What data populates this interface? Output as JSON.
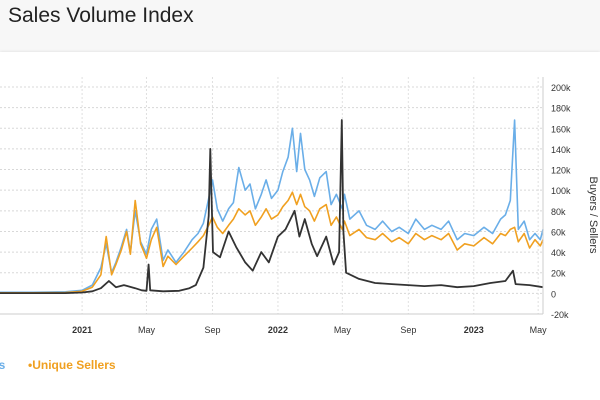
{
  "page": {
    "title": "Sales Volume Index"
  },
  "legend": {
    "items": [
      {
        "label": "Unique Buyers",
        "visible_text": "rs",
        "color": "#6aaee8"
      },
      {
        "label": "Unique Sellers",
        "visible_text": "•Unique Sellers",
        "color": "#f0a020"
      }
    ]
  },
  "chart_data": {
    "type": "line",
    "ylabel": "Buyers / Sellers",
    "ylim": [
      -20000,
      200000
    ],
    "y_ticks": [
      "200k",
      "180k",
      "160k",
      "140k",
      "120k",
      "100k",
      "80k",
      "60k",
      "40k",
      "20k",
      "0",
      "-20k"
    ],
    "y_tick_values": [
      200000,
      180000,
      160000,
      140000,
      120000,
      100000,
      80000,
      60000,
      40000,
      20000,
      0,
      -20000
    ],
    "x_range": [
      "2020-08-01",
      "2023-05-10"
    ],
    "x_ticks": [
      {
        "label": "2021",
        "date": "2021-01-01",
        "bold": true
      },
      {
        "label": "May",
        "date": "2021-05-01",
        "bold": false
      },
      {
        "label": "Sep",
        "date": "2021-09-01",
        "bold": false
      },
      {
        "label": "2022",
        "date": "2022-01-01",
        "bold": true
      },
      {
        "label": "May",
        "date": "2022-05-01",
        "bold": false
      },
      {
        "label": "Sep",
        "date": "2022-09-01",
        "bold": false
      },
      {
        "label": "2023",
        "date": "2023-01-01",
        "bold": true
      },
      {
        "label": "May",
        "date": "2023-05-01",
        "bold": false
      }
    ],
    "grid": true,
    "series": [
      {
        "name": "Unique Buyers",
        "color": "#6aaee8",
        "points": [
          [
            "2020-08-01",
            1000
          ],
          [
            "2020-10-01",
            1000
          ],
          [
            "2020-12-01",
            1500
          ],
          [
            "2021-01-01",
            3000
          ],
          [
            "2021-01-20",
            8000
          ],
          [
            "2021-02-05",
            25000
          ],
          [
            "2021-02-15",
            48000
          ],
          [
            "2021-02-25",
            20000
          ],
          [
            "2021-03-05",
            30000
          ],
          [
            "2021-03-15",
            45000
          ],
          [
            "2021-03-25",
            62000
          ],
          [
            "2021-04-01",
            40000
          ],
          [
            "2021-04-10",
            80000
          ],
          [
            "2021-04-20",
            50000
          ],
          [
            "2021-05-01",
            38000
          ],
          [
            "2021-05-10",
            62000
          ],
          [
            "2021-05-20",
            72000
          ],
          [
            "2021-06-01",
            32000
          ],
          [
            "2021-06-10",
            42000
          ],
          [
            "2021-06-25",
            30000
          ],
          [
            "2021-07-10",
            40000
          ],
          [
            "2021-07-25",
            52000
          ],
          [
            "2021-08-05",
            58000
          ],
          [
            "2021-08-15",
            68000
          ],
          [
            "2021-08-25",
            92000
          ],
          [
            "2021-09-01",
            110000
          ],
          [
            "2021-09-10",
            82000
          ],
          [
            "2021-09-20",
            70000
          ],
          [
            "2021-10-01",
            82000
          ],
          [
            "2021-10-10",
            88000
          ],
          [
            "2021-10-20",
            122000
          ],
          [
            "2021-11-01",
            100000
          ],
          [
            "2021-11-10",
            106000
          ],
          [
            "2021-11-20",
            82000
          ],
          [
            "2021-12-01",
            96000
          ],
          [
            "2021-12-10",
            110000
          ],
          [
            "2021-12-20",
            92000
          ],
          [
            "2022-01-01",
            100000
          ],
          [
            "2022-01-10",
            118000
          ],
          [
            "2022-01-20",
            132000
          ],
          [
            "2022-01-28",
            160000
          ],
          [
            "2022-02-05",
            118000
          ],
          [
            "2022-02-12",
            155000
          ],
          [
            "2022-02-20",
            120000
          ],
          [
            "2022-03-01",
            110000
          ],
          [
            "2022-03-10",
            94000
          ],
          [
            "2022-03-20",
            112000
          ],
          [
            "2022-04-01",
            118000
          ],
          [
            "2022-04-10",
            86000
          ],
          [
            "2022-04-20",
            96000
          ],
          [
            "2022-05-01",
            82000
          ],
          [
            "2022-05-05",
            96000
          ],
          [
            "2022-05-15",
            72000
          ],
          [
            "2022-06-01",
            80000
          ],
          [
            "2022-06-15",
            66000
          ],
          [
            "2022-07-01",
            62000
          ],
          [
            "2022-07-15",
            70000
          ],
          [
            "2022-08-01",
            60000
          ],
          [
            "2022-08-15",
            64000
          ],
          [
            "2022-09-01",
            58000
          ],
          [
            "2022-09-15",
            72000
          ],
          [
            "2022-10-01",
            62000
          ],
          [
            "2022-10-15",
            66000
          ],
          [
            "2022-11-01",
            62000
          ],
          [
            "2022-11-15",
            70000
          ],
          [
            "2022-12-01",
            52000
          ],
          [
            "2022-12-15",
            58000
          ],
          [
            "2023-01-01",
            56000
          ],
          [
            "2023-01-20",
            64000
          ],
          [
            "2023-02-05",
            58000
          ],
          [
            "2023-02-20",
            72000
          ],
          [
            "2023-03-01",
            76000
          ],
          [
            "2023-03-10",
            90000
          ],
          [
            "2023-03-18",
            168000
          ],
          [
            "2023-03-25",
            62000
          ],
          [
            "2023-04-05",
            70000
          ],
          [
            "2023-04-15",
            52000
          ],
          [
            "2023-04-25",
            58000
          ],
          [
            "2023-05-05",
            52000
          ],
          [
            "2023-05-10",
            62000
          ]
        ]
      },
      {
        "name": "Unique Sellers",
        "color": "#f0a020",
        "points": [
          [
            "2020-08-01",
            500
          ],
          [
            "2020-10-01",
            500
          ],
          [
            "2020-12-01",
            800
          ],
          [
            "2021-01-01",
            2000
          ],
          [
            "2021-01-20",
            6000
          ],
          [
            "2021-02-05",
            18000
          ],
          [
            "2021-02-15",
            55000
          ],
          [
            "2021-02-25",
            18000
          ],
          [
            "2021-03-05",
            28000
          ],
          [
            "2021-03-15",
            42000
          ],
          [
            "2021-03-25",
            60000
          ],
          [
            "2021-04-01",
            38000
          ],
          [
            "2021-04-10",
            90000
          ],
          [
            "2021-04-20",
            48000
          ],
          [
            "2021-05-01",
            34000
          ],
          [
            "2021-05-10",
            52000
          ],
          [
            "2021-05-20",
            64000
          ],
          [
            "2021-06-01",
            26000
          ],
          [
            "2021-06-10",
            36000
          ],
          [
            "2021-06-25",
            28000
          ],
          [
            "2021-07-10",
            36000
          ],
          [
            "2021-07-25",
            44000
          ],
          [
            "2021-08-05",
            50000
          ],
          [
            "2021-08-15",
            56000
          ],
          [
            "2021-08-25",
            66000
          ],
          [
            "2021-09-01",
            74000
          ],
          [
            "2021-09-10",
            64000
          ],
          [
            "2021-09-20",
            58000
          ],
          [
            "2021-10-01",
            66000
          ],
          [
            "2021-10-10",
            72000
          ],
          [
            "2021-10-20",
            82000
          ],
          [
            "2021-11-01",
            76000
          ],
          [
            "2021-11-10",
            80000
          ],
          [
            "2021-11-20",
            66000
          ],
          [
            "2021-12-01",
            74000
          ],
          [
            "2021-12-10",
            82000
          ],
          [
            "2021-12-20",
            72000
          ],
          [
            "2022-01-01",
            76000
          ],
          [
            "2022-01-10",
            84000
          ],
          [
            "2022-01-20",
            90000
          ],
          [
            "2022-01-28",
            98000
          ],
          [
            "2022-02-05",
            86000
          ],
          [
            "2022-02-12",
            96000
          ],
          [
            "2022-02-20",
            84000
          ],
          [
            "2022-03-01",
            80000
          ],
          [
            "2022-03-10",
            70000
          ],
          [
            "2022-03-20",
            82000
          ],
          [
            "2022-04-01",
            86000
          ],
          [
            "2022-04-10",
            66000
          ],
          [
            "2022-04-20",
            74000
          ],
          [
            "2022-05-01",
            62000
          ],
          [
            "2022-05-05",
            70000
          ],
          [
            "2022-05-15",
            56000
          ],
          [
            "2022-06-01",
            62000
          ],
          [
            "2022-06-15",
            54000
          ],
          [
            "2022-07-01",
            52000
          ],
          [
            "2022-07-15",
            58000
          ],
          [
            "2022-08-01",
            50000
          ],
          [
            "2022-08-15",
            54000
          ],
          [
            "2022-09-01",
            48000
          ],
          [
            "2022-09-15",
            58000
          ],
          [
            "2022-10-01",
            52000
          ],
          [
            "2022-10-15",
            56000
          ],
          [
            "2022-11-01",
            52000
          ],
          [
            "2022-11-15",
            58000
          ],
          [
            "2022-12-01",
            42000
          ],
          [
            "2022-12-15",
            48000
          ],
          [
            "2023-01-01",
            46000
          ],
          [
            "2023-01-20",
            54000
          ],
          [
            "2023-02-05",
            48000
          ],
          [
            "2023-02-20",
            58000
          ],
          [
            "2023-03-01",
            56000
          ],
          [
            "2023-03-10",
            62000
          ],
          [
            "2023-03-18",
            64000
          ],
          [
            "2023-03-25",
            50000
          ],
          [
            "2023-04-05",
            58000
          ],
          [
            "2023-04-15",
            44000
          ],
          [
            "2023-04-25",
            52000
          ],
          [
            "2023-05-05",
            46000
          ],
          [
            "2023-05-10",
            52000
          ]
        ]
      },
      {
        "name": "Sales Volume Index",
        "color": "#333333",
        "points": [
          [
            "2020-08-01",
            300
          ],
          [
            "2020-12-01",
            300
          ],
          [
            "2021-01-01",
            800
          ],
          [
            "2021-01-20",
            2000
          ],
          [
            "2021-02-05",
            5000
          ],
          [
            "2021-02-20",
            12000
          ],
          [
            "2021-03-05",
            6000
          ],
          [
            "2021-03-20",
            8000
          ],
          [
            "2021-04-10",
            5000
          ],
          [
            "2021-04-22",
            3000
          ],
          [
            "2021-05-01",
            2500
          ],
          [
            "2021-05-05",
            28000
          ],
          [
            "2021-05-08",
            3000
          ],
          [
            "2021-06-01",
            2000
          ],
          [
            "2021-07-01",
            2500
          ],
          [
            "2021-07-20",
            5000
          ],
          [
            "2021-08-01",
            8000
          ],
          [
            "2021-08-15",
            25000
          ],
          [
            "2021-08-25",
            75000
          ],
          [
            "2021-08-28",
            140000
          ],
          [
            "2021-09-02",
            40000
          ],
          [
            "2021-09-15",
            35000
          ],
          [
            "2021-10-01",
            60000
          ],
          [
            "2021-10-15",
            45000
          ],
          [
            "2021-11-01",
            30000
          ],
          [
            "2021-11-15",
            22000
          ],
          [
            "2021-12-01",
            40000
          ],
          [
            "2021-12-15",
            30000
          ],
          [
            "2022-01-01",
            55000
          ],
          [
            "2022-01-15",
            62000
          ],
          [
            "2022-02-01",
            80000
          ],
          [
            "2022-02-10",
            55000
          ],
          [
            "2022-02-20",
            72000
          ],
          [
            "2022-03-05",
            48000
          ],
          [
            "2022-03-15",
            36000
          ],
          [
            "2022-04-01",
            55000
          ],
          [
            "2022-04-15",
            28000
          ],
          [
            "2022-04-25",
            40000
          ],
          [
            "2022-04-30",
            168000
          ],
          [
            "2022-05-03",
            60000
          ],
          [
            "2022-05-08",
            20000
          ],
          [
            "2022-06-01",
            14000
          ],
          [
            "2022-07-01",
            10000
          ],
          [
            "2022-08-01",
            9000
          ],
          [
            "2022-09-01",
            8000
          ],
          [
            "2022-10-01",
            7000
          ],
          [
            "2022-11-01",
            8000
          ],
          [
            "2022-12-01",
            6000
          ],
          [
            "2023-01-01",
            7000
          ],
          [
            "2023-02-01",
            10000
          ],
          [
            "2023-03-01",
            12000
          ],
          [
            "2023-03-15",
            22000
          ],
          [
            "2023-03-20",
            9000
          ],
          [
            "2023-04-15",
            8000
          ],
          [
            "2023-05-10",
            6000
          ]
        ]
      }
    ]
  }
}
